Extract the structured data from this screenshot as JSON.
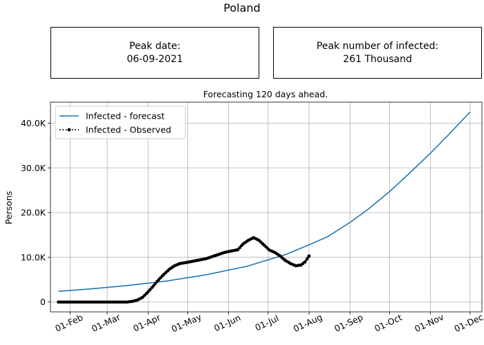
{
  "header": {
    "title": "Poland",
    "peak_date_label": "Peak date:",
    "peak_date_value": "06-09-2021",
    "peak_infected_label": "Peak number of infected:",
    "peak_infected_value": "261 Thousand"
  },
  "colors": {
    "forecast": "#1f77b4",
    "observed": "#000000",
    "grid": "#b0b0b0"
  },
  "chart_data": {
    "type": "line",
    "title": "Forecasting 120 days ahead.",
    "xlabel": "",
    "ylabel": "Persons",
    "grid": true,
    "legend_position": "top-left",
    "xlim": [
      "2021-01-17",
      "2021-12-10"
    ],
    "ylim": [
      -2200,
      44700
    ],
    "x_ticks": [
      {
        "date": "2021-02-01",
        "label": "01-Feb"
      },
      {
        "date": "2021-03-01",
        "label": "01-Mar"
      },
      {
        "date": "2021-04-01",
        "label": "01-Apr"
      },
      {
        "date": "2021-05-01",
        "label": "01-May"
      },
      {
        "date": "2021-06-01",
        "label": "01-Jun"
      },
      {
        "date": "2021-07-01",
        "label": "01-Jul"
      },
      {
        "date": "2021-08-01",
        "label": "01-Aug"
      },
      {
        "date": "2021-09-01",
        "label": "01-Sep"
      },
      {
        "date": "2021-10-01",
        "label": "01-Oct"
      },
      {
        "date": "2021-11-01",
        "label": "01-Nov"
      },
      {
        "date": "2021-12-01",
        "label": "01-Dec"
      }
    ],
    "y_ticks": [
      {
        "value": 0,
        "label": "0"
      },
      {
        "value": 10000,
        "label": "10.0K"
      },
      {
        "value": 20000,
        "label": "20.0K"
      },
      {
        "value": 30000,
        "label": "30.0K"
      },
      {
        "value": 40000,
        "label": "40.0K"
      }
    ],
    "series": [
      {
        "name": "Infected - forecast",
        "style": "solid",
        "points": [
          [
            "2021-01-23",
            2400
          ],
          [
            "2021-02-15",
            2900
          ],
          [
            "2021-03-15",
            3650
          ],
          [
            "2021-04-15",
            4700
          ],
          [
            "2021-05-15",
            6100
          ],
          [
            "2021-06-15",
            8000
          ],
          [
            "2021-07-15",
            10700
          ],
          [
            "2021-08-01",
            12800
          ],
          [
            "2021-08-15",
            14600
          ],
          [
            "2021-09-01",
            17800
          ],
          [
            "2021-09-15",
            20800
          ],
          [
            "2021-10-01",
            24700
          ],
          [
            "2021-10-15",
            28500
          ],
          [
            "2021-11-01",
            33300
          ],
          [
            "2021-11-15",
            37500
          ],
          [
            "2021-12-01",
            42500
          ]
        ]
      },
      {
        "name": "Infected - Observed",
        "style": "dotted-markers",
        "points": [
          [
            "2021-01-23",
            0
          ],
          [
            "2021-02-01",
            0
          ],
          [
            "2021-02-15",
            0
          ],
          [
            "2021-03-01",
            0
          ],
          [
            "2021-03-10",
            0
          ],
          [
            "2021-03-16",
            0
          ],
          [
            "2021-03-20",
            150
          ],
          [
            "2021-03-24",
            450
          ],
          [
            "2021-03-28",
            1100
          ],
          [
            "2021-04-01",
            2300
          ],
          [
            "2021-04-05",
            3600
          ],
          [
            "2021-04-09",
            5000
          ],
          [
            "2021-04-13",
            6200
          ],
          [
            "2021-04-17",
            7300
          ],
          [
            "2021-04-21",
            8100
          ],
          [
            "2021-04-25",
            8600
          ],
          [
            "2021-05-01",
            8900
          ],
          [
            "2021-05-08",
            9300
          ],
          [
            "2021-05-15",
            9700
          ],
          [
            "2021-05-22",
            10400
          ],
          [
            "2021-05-29",
            11100
          ],
          [
            "2021-06-03",
            11400
          ],
          [
            "2021-06-08",
            11700
          ],
          [
            "2021-06-12",
            13000
          ],
          [
            "2021-06-16",
            13800
          ],
          [
            "2021-06-20",
            14400
          ],
          [
            "2021-06-24",
            13800
          ],
          [
            "2021-06-28",
            12700
          ],
          [
            "2021-07-02",
            11600
          ],
          [
            "2021-07-06",
            11100
          ],
          [
            "2021-07-10",
            10300
          ],
          [
            "2021-07-14",
            9300
          ],
          [
            "2021-07-18",
            8600
          ],
          [
            "2021-07-22",
            8100
          ],
          [
            "2021-07-26",
            8300
          ],
          [
            "2021-07-29",
            9000
          ],
          [
            "2021-08-01",
            10300
          ]
        ]
      }
    ]
  }
}
